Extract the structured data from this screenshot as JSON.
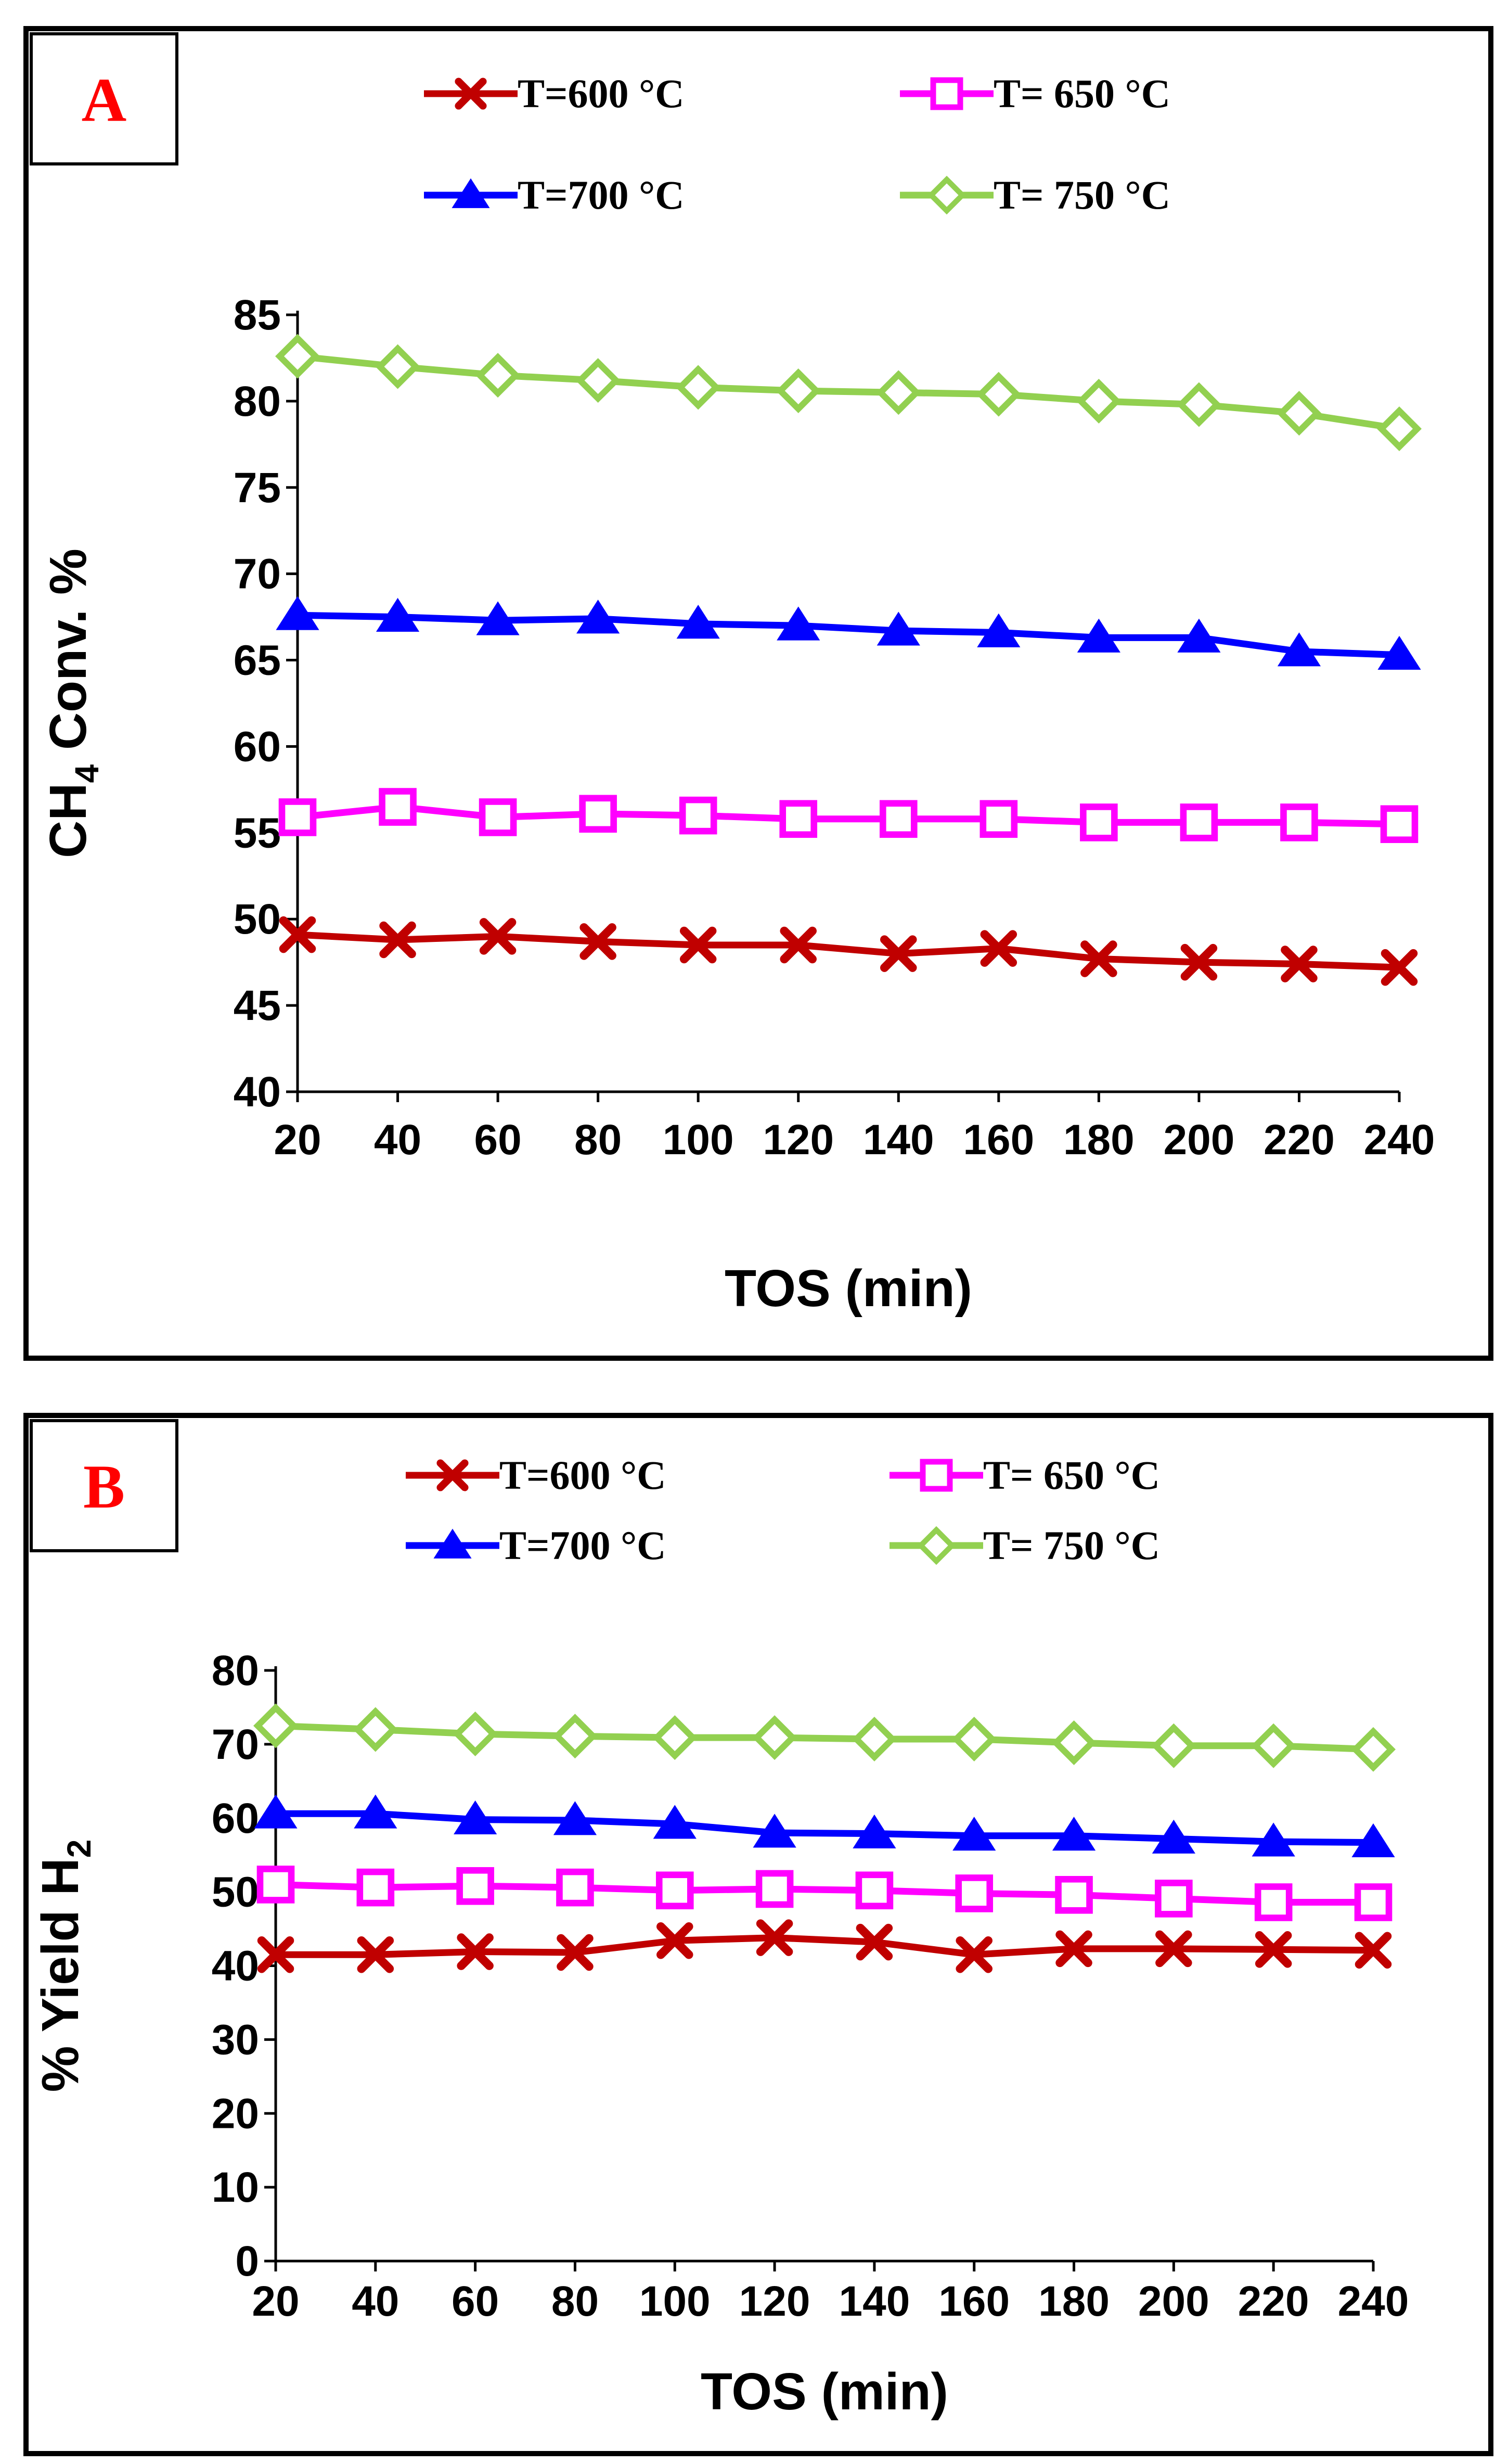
{
  "chart_data": [
    {
      "type": "line",
      "panel_label": "A",
      "x": [
        20,
        40,
        60,
        80,
        100,
        120,
        140,
        160,
        180,
        200,
        220,
        240
      ],
      "xlabel": "TOS (min)",
      "ylabel": "CH4 Conv. %",
      "ylabel_parts": {
        "main": "CH",
        "sub": "4",
        "rest": " Conv. %"
      },
      "ylim": [
        40,
        85
      ],
      "yticks": [
        40,
        45,
        50,
        55,
        60,
        65,
        70,
        75,
        80,
        85
      ],
      "grid": false,
      "legend_position": "top",
      "series": [
        {
          "name": "T=600 °C",
          "color": "#c00000",
          "marker": "x",
          "values": [
            49.1,
            48.8,
            49.0,
            48.7,
            48.5,
            48.5,
            48.0,
            48.3,
            47.7,
            47.5,
            47.4,
            47.2
          ]
        },
        {
          "name": "T= 650 °C",
          "color": "#ff00ff",
          "marker": "square",
          "values": [
            55.9,
            56.5,
            55.9,
            56.1,
            56.0,
            55.8,
            55.8,
            55.8,
            55.6,
            55.6,
            55.6,
            55.5
          ]
        },
        {
          "name": "T=700 °C",
          "color": "#0000ff",
          "marker": "triangle",
          "values": [
            67.6,
            67.5,
            67.3,
            67.4,
            67.1,
            67.0,
            66.7,
            66.6,
            66.3,
            66.3,
            65.5,
            65.3
          ]
        },
        {
          "name": "T= 750 °C",
          "color": "#92d050",
          "marker": "diamond",
          "values": [
            82.6,
            82.0,
            81.5,
            81.2,
            80.8,
            80.6,
            80.5,
            80.4,
            80.0,
            79.8,
            79.3,
            78.4
          ]
        }
      ]
    },
    {
      "type": "line",
      "panel_label": "B",
      "x": [
        20,
        40,
        60,
        80,
        100,
        120,
        140,
        160,
        180,
        200,
        220,
        240
      ],
      "xlabel": "TOS (min)",
      "ylabel": "% Yield H2",
      "ylabel_parts": {
        "main": "% Yield  H",
        "sub": "2",
        "rest": ""
      },
      "ylim": [
        0,
        80
      ],
      "yticks": [
        0,
        10,
        20,
        30,
        40,
        50,
        60,
        70,
        80
      ],
      "grid": false,
      "legend_position": "top",
      "series": [
        {
          "name": "T=600 °C",
          "color": "#c00000",
          "marker": "x",
          "values": [
            41.5,
            41.5,
            41.9,
            41.8,
            43.4,
            43.8,
            43.2,
            41.5,
            42.3,
            42.3,
            42.2,
            42.1
          ]
        },
        {
          "name": "T= 650 °C",
          "color": "#ff00ff",
          "marker": "square",
          "values": [
            51.0,
            50.6,
            50.8,
            50.6,
            50.2,
            50.4,
            50.2,
            49.8,
            49.6,
            49.1,
            48.6,
            48.6
          ]
        },
        {
          "name": "T=700 °C",
          "color": "#0000ff",
          "marker": "triangle",
          "values": [
            60.6,
            60.6,
            59.8,
            59.7,
            59.2,
            58.0,
            57.9,
            57.6,
            57.6,
            57.2,
            56.8,
            56.7
          ]
        },
        {
          "name": "T= 750 °C",
          "color": "#92d050",
          "marker": "diamond",
          "values": [
            72.5,
            72.0,
            71.4,
            71.1,
            70.9,
            70.9,
            70.7,
            70.7,
            70.2,
            69.8,
            69.8,
            69.3
          ]
        }
      ]
    }
  ]
}
